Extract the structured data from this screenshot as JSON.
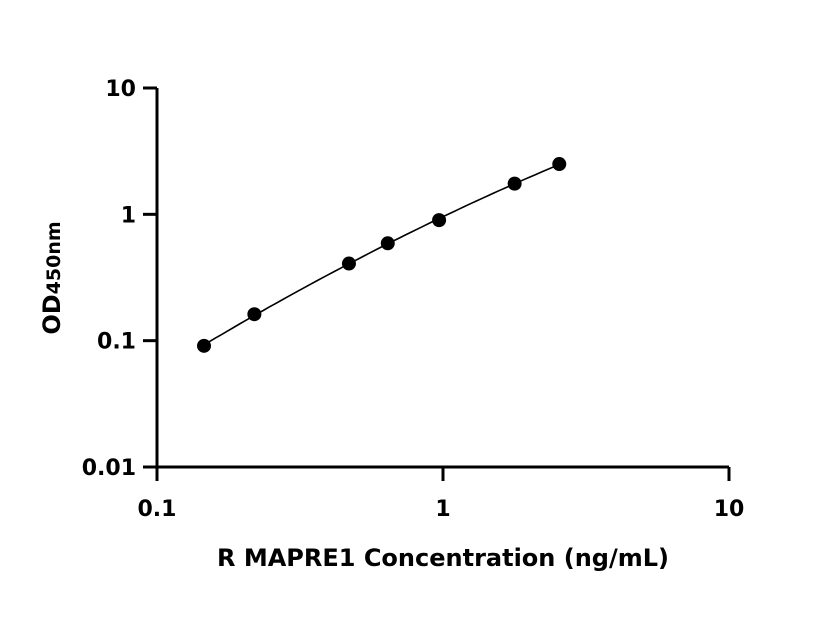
{
  "chart_data": {
    "type": "scatter",
    "x_scale": "log",
    "y_scale": "log",
    "xlabel": "R MAPRE1 Concentration (ng/mL)",
    "ylabel_main": "OD",
    "ylabel_sub": "450nm",
    "xlim": [
      0.1,
      10
    ],
    "ylim": [
      0.01,
      10
    ],
    "x_ticks": [
      0.1,
      1,
      10
    ],
    "x_tick_labels": [
      "0.1",
      "1",
      "10"
    ],
    "y_ticks": [
      0.01,
      0.1,
      1,
      10
    ],
    "y_tick_labels": [
      "0.01",
      "0.1",
      "1",
      "10"
    ],
    "grid": false,
    "legend": "none",
    "fit_line": true,
    "series": [
      {
        "x": [
          0.146,
          0.219,
          0.469,
          0.641,
          0.969,
          1.78,
          2.55
        ],
        "y": [
          0.091,
          0.162,
          0.408,
          0.59,
          0.9,
          1.75,
          2.5
        ]
      }
    ]
  }
}
